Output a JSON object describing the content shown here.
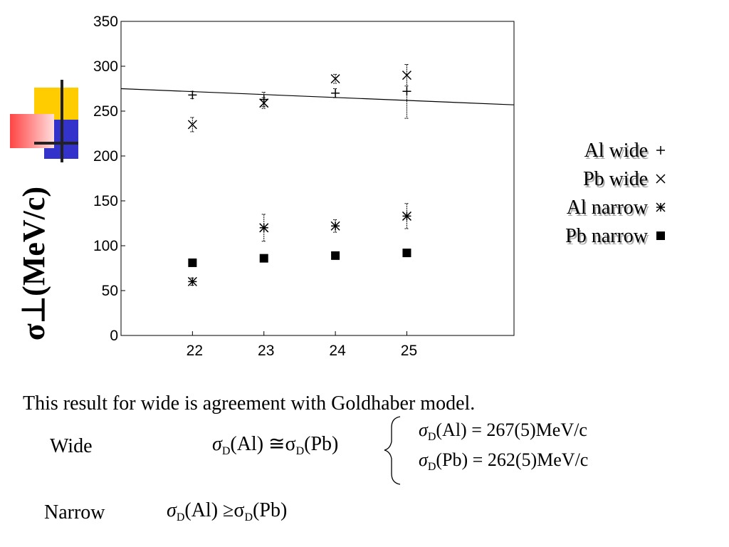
{
  "chart_data": {
    "type": "scatter",
    "y_label": "σ⊥(MeV/c)",
    "x": [
      22,
      23,
      24,
      25
    ],
    "xlim": [
      21,
      26.5
    ],
    "xticks": [
      22,
      23,
      24,
      25
    ],
    "ylim": [
      0,
      350
    ],
    "yticks": [
      0,
      50,
      100,
      150,
      200,
      250,
      300,
      350
    ],
    "series": [
      {
        "name": "Al wide",
        "marker": "plus",
        "color": "#000000",
        "values": [
          268,
          263,
          270,
          272
        ],
        "errors": [
          4,
          8,
          5,
          30
        ]
      },
      {
        "name": "Pb wide",
        "marker": "cross",
        "color": "#000000",
        "values": [
          235,
          259,
          286,
          290
        ],
        "errors": [
          8,
          6,
          5,
          12
        ]
      },
      {
        "name": "Al narrow",
        "marker": "star",
        "color": "#000000",
        "values": [
          60,
          120,
          122,
          133
        ],
        "errors": [
          4,
          15,
          7,
          14
        ]
      },
      {
        "name": "Pb narrow",
        "marker": "square",
        "color": "#000000",
        "values": [
          81,
          86,
          89,
          92
        ]
      }
    ],
    "fit_line": {
      "x": [
        21,
        26.5
      ],
      "values": [
        275,
        257
      ],
      "color": "#000000"
    }
  },
  "caption": "This result for wide is agreement with Goldhaber model.",
  "wide": {
    "label": "Wide",
    "equation": [
      "σ",
      "D",
      "(Al) ≅σ",
      "D",
      "(Pb)"
    ],
    "results": [
      [
        "σ",
        "D",
        "(Al) = 267(5)MeV/c"
      ],
      [
        "σ",
        "D",
        "(Pb) = 262(5)MeV/c"
      ]
    ]
  },
  "narrow": {
    "label": "Narrow",
    "equation": [
      "σ",
      "D",
      "(Al) ≥σ",
      "D",
      "(Pb)"
    ]
  }
}
